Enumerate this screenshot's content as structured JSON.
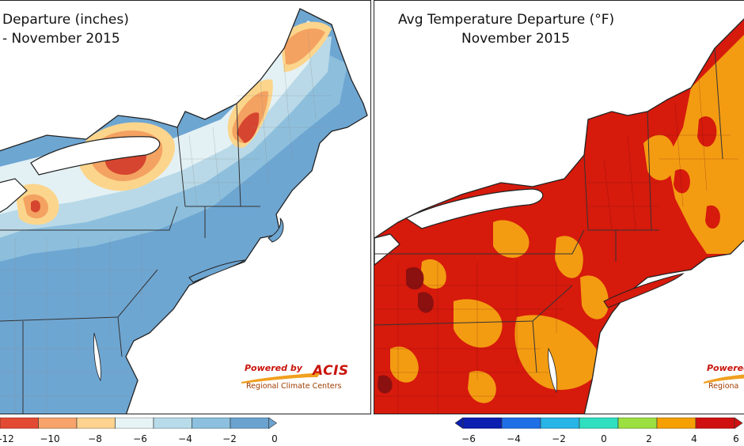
{
  "left_panel": {
    "title_line1": "Departure (inches)",
    "title_line2": "- November 2015",
    "colorbar_ticks": [
      "-12",
      "−10",
      "−8",
      "−6",
      "−4",
      "−2",
      "0"
    ],
    "colorbar_colors": [
      "#e34a33",
      "#f7a36b",
      "#fdd38f",
      "#e6f4f6",
      "#b7dbe9",
      "#8cc0de",
      "#6ba3d0"
    ]
  },
  "right_panel": {
    "title_line1": "Avg Temperature Departure (°F)",
    "title_line2": "November 2015",
    "colorbar_ticks": [
      "−6",
      "−4",
      "−2",
      "0",
      "2",
      "4",
      "6"
    ],
    "colorbar_colors": [
      "#0b1fb0",
      "#1f6fe6",
      "#27b4e6",
      "#2fe0c0",
      "#9be040",
      "#f5a000",
      "#d01010"
    ]
  },
  "logo": {
    "powered_by": "Powered by",
    "brand": "ACIS",
    "subtitle": "Regional Climate Centers",
    "subtitle_short": "Regiona",
    "powered_short": "Powered"
  },
  "map_colors": {
    "precip_dark_red": "#d6452f",
    "precip_orange": "#f4a261",
    "precip_yellow": "#fcd58c",
    "precip_pale": "#e3f1f4",
    "precip_light_blue": "#b9d9e8",
    "precip_mid_blue": "#8dbfdd",
    "precip_blue": "#6ea6d2",
    "temp_red": "#d61a0c",
    "temp_orange": "#f39c12",
    "temp_dark_red": "#8b1010"
  }
}
